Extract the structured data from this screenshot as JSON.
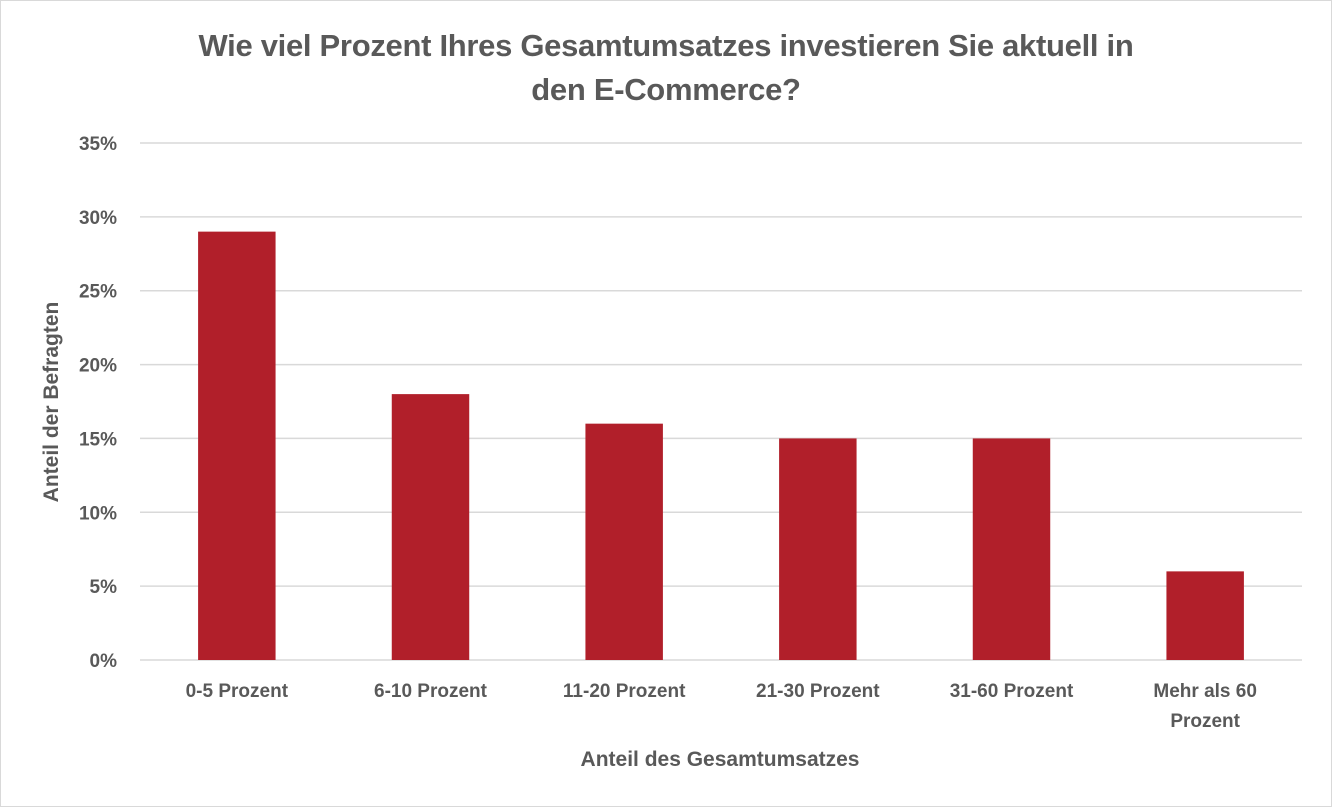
{
  "chart_data": {
    "type": "bar",
    "title_lines": [
      "Wie viel Prozent Ihres Gesamtumsatzes investieren Sie aktuell in",
      "den E-Commerce?"
    ],
    "categories": [
      [
        "0-5 Prozent"
      ],
      [
        "6-10 Prozent"
      ],
      [
        "11-20 Prozent"
      ],
      [
        "21-30 Prozent"
      ],
      [
        "31-60 Prozent"
      ],
      [
        "Mehr als 60",
        "Prozent"
      ]
    ],
    "values": [
      29,
      18,
      16,
      15,
      15,
      6
    ],
    "xlabel": "Anteil des Gesamtumsatzes",
    "ylabel": "Anteil der Befragten",
    "ylim": [
      0,
      35
    ],
    "yticks": [
      0,
      5,
      10,
      15,
      20,
      25,
      30,
      35
    ],
    "ytick_labels": [
      "0%",
      "5%",
      "10%",
      "15%",
      "20%",
      "25%",
      "30%",
      "35%"
    ],
    "grid": true,
    "legend": "none",
    "colors": {
      "bar": "#b11f2a",
      "grid": "#d9d9d9",
      "text": "#595959"
    }
  }
}
